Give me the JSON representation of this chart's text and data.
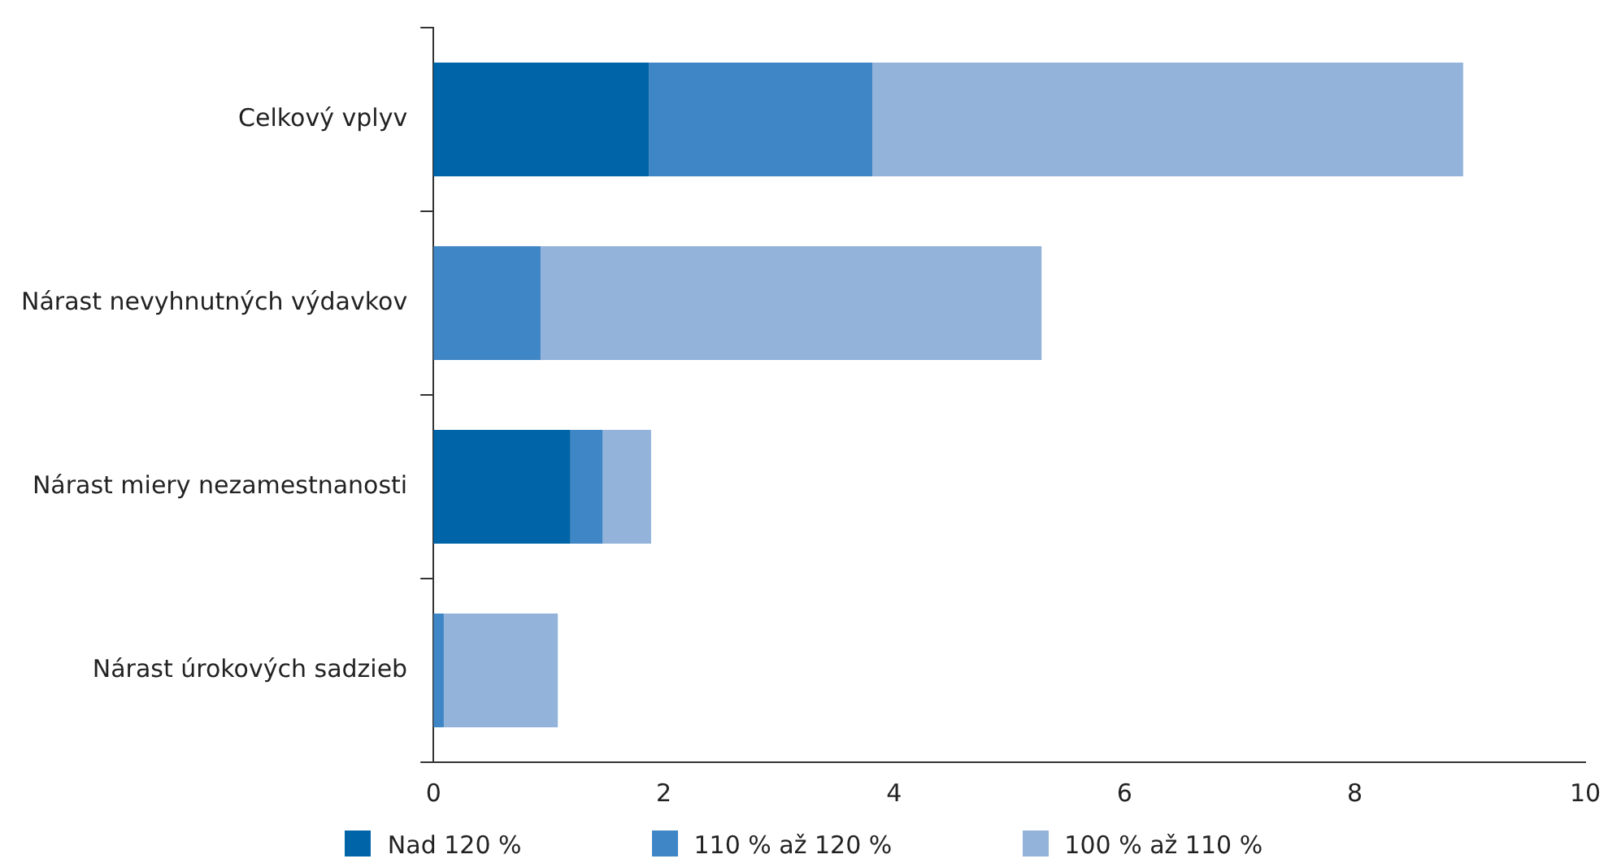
{
  "chart_data": {
    "type": "bar",
    "orientation": "horizontal",
    "stacked": true,
    "categories": [
      "Celkový vplyv",
      "Nárast nevyhnutných výdavkov",
      "Nárast miery nezamestnanosti",
      "Nárast úrokových sadzieb"
    ],
    "series": [
      {
        "name": "Nad 120 %",
        "color": "#0064a8",
        "values": [
          1.87,
          0,
          1.19,
          0
        ]
      },
      {
        "name": "110 % až 120 %",
        "color": "#3f86c6",
        "values": [
          1.94,
          0.93,
          0.28,
          0.09
        ]
      },
      {
        "name": "100 % až 110 %",
        "color": "#93b3da",
        "values": [
          5.13,
          4.35,
          0.42,
          0.99
        ]
      }
    ],
    "xlim": [
      0,
      10
    ],
    "xticks": [
      0,
      2,
      4,
      6,
      8,
      10
    ],
    "grid": false,
    "legend": "bottom"
  }
}
